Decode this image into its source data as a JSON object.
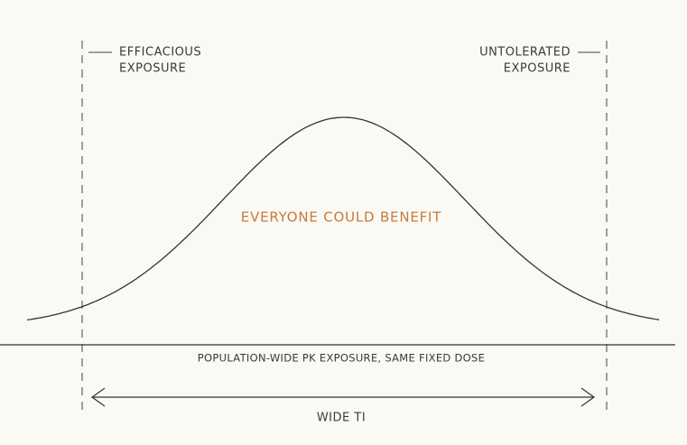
{
  "labels": {
    "left": [
      "EFFICACIOUS",
      "EXPOSURE"
    ],
    "right": [
      "UNTOLERATED",
      "EXPOSURE"
    ],
    "center": "EVERYONE COULD BENEFIT",
    "axis": "POPULATION-WIDE PK EXPOSURE, SAME FIXED DOSE",
    "range": "WIDE TI"
  }
}
